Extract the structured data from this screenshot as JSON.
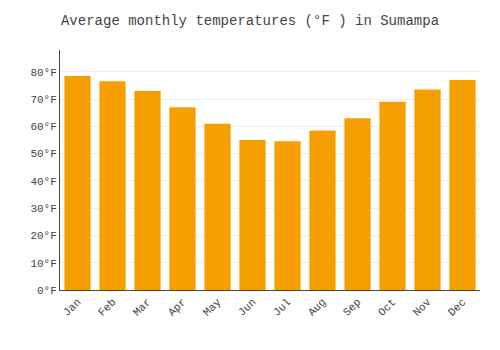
{
  "chart_data": {
    "type": "bar",
    "title": "Average monthly temperatures (°F ) in Sumampa",
    "categories": [
      "Jan",
      "Feb",
      "Mar",
      "Apr",
      "May",
      "Jun",
      "Jul",
      "Aug",
      "Sep",
      "Oct",
      "Nov",
      "Dec"
    ],
    "values": [
      78.5,
      76.5,
      73.0,
      67.0,
      61.0,
      55.0,
      54.5,
      58.5,
      63.0,
      69.0,
      73.5,
      77.0
    ],
    "color": "#F5A000",
    "ylim": [
      0,
      88
    ],
    "yticks": [
      {
        "value": 0,
        "label": "0°F"
      },
      {
        "value": 10,
        "label": "10°F"
      },
      {
        "value": 20,
        "label": "20°F"
      },
      {
        "value": 30,
        "label": "30°F"
      },
      {
        "value": 40,
        "label": "40°F"
      },
      {
        "value": 50,
        "label": "50°F"
      },
      {
        "value": 60,
        "label": "60°F"
      },
      {
        "value": 70,
        "label": "70°F"
      },
      {
        "value": 80,
        "label": "80°F"
      }
    ],
    "grid": true
  }
}
